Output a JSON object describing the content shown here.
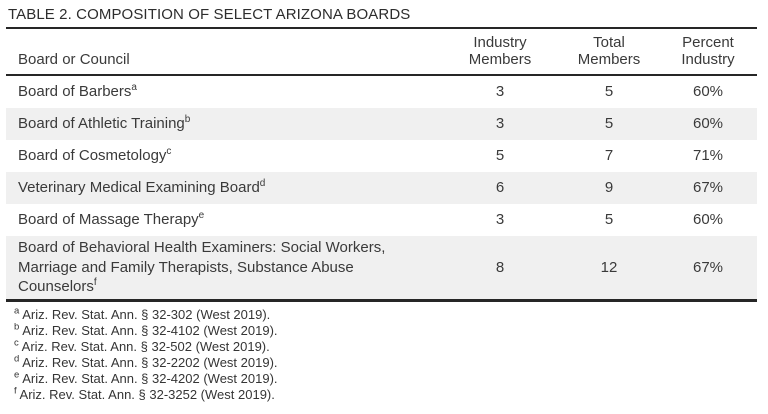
{
  "title": "TABLE 2. COMPOSITION OF SELECT ARIZONA BOARDS",
  "table": {
    "columns": [
      {
        "label": "Board or Council"
      },
      {
        "line1": "Industry",
        "line2": "Members"
      },
      {
        "line1": "Total",
        "line2": "Members"
      },
      {
        "line1": "Percent",
        "line2": "Industry"
      }
    ],
    "rows": [
      {
        "name": "Board of Barbers",
        "note": "a",
        "industry": "3",
        "total": "5",
        "percent": "60%"
      },
      {
        "name": "Board of Athletic Training",
        "note": "b",
        "industry": "3",
        "total": "5",
        "percent": "60%"
      },
      {
        "name": "Board of Cosmetology",
        "note": "c",
        "industry": "5",
        "total": "7",
        "percent": "71%"
      },
      {
        "name": "Veterinary Medical Examining Board",
        "note": "d",
        "industry": "6",
        "total": "9",
        "percent": "67%"
      },
      {
        "name": "Board of Massage Therapy",
        "note": "e",
        "industry": "3",
        "total": "5",
        "percent": "60%"
      },
      {
        "name": "Board of Behavioral Health Examiners: Social Workers, Marriage and Family Therapists, Substance Abuse Counselors",
        "note": "f",
        "industry": "8",
        "total": "12",
        "percent": "67%"
      }
    ]
  },
  "footnotes": [
    {
      "marker": "a",
      "text": "Ariz. Rev. Stat. Ann. § 32-302 (West 2019)."
    },
    {
      "marker": "b",
      "text": "Ariz. Rev. Stat. Ann. § 32-4102 (West 2019)."
    },
    {
      "marker": "c",
      "text": "Ariz. Rev. Stat. Ann. § 32-502 (West 2019)."
    },
    {
      "marker": "d",
      "text": "Ariz. Rev. Stat. Ann. § 32-2202 (West 2019)."
    },
    {
      "marker": "e",
      "text": "Ariz. Rev. Stat. Ann. § 32-4202 (West 2019)."
    },
    {
      "marker": "f",
      "text": "Ariz. Rev. Stat. Ann. § 32-3252 (West 2019)."
    }
  ],
  "colors": {
    "row_alt_background": "#f0f0f0",
    "rule": "#262626",
    "text": "#3a3a3a"
  }
}
